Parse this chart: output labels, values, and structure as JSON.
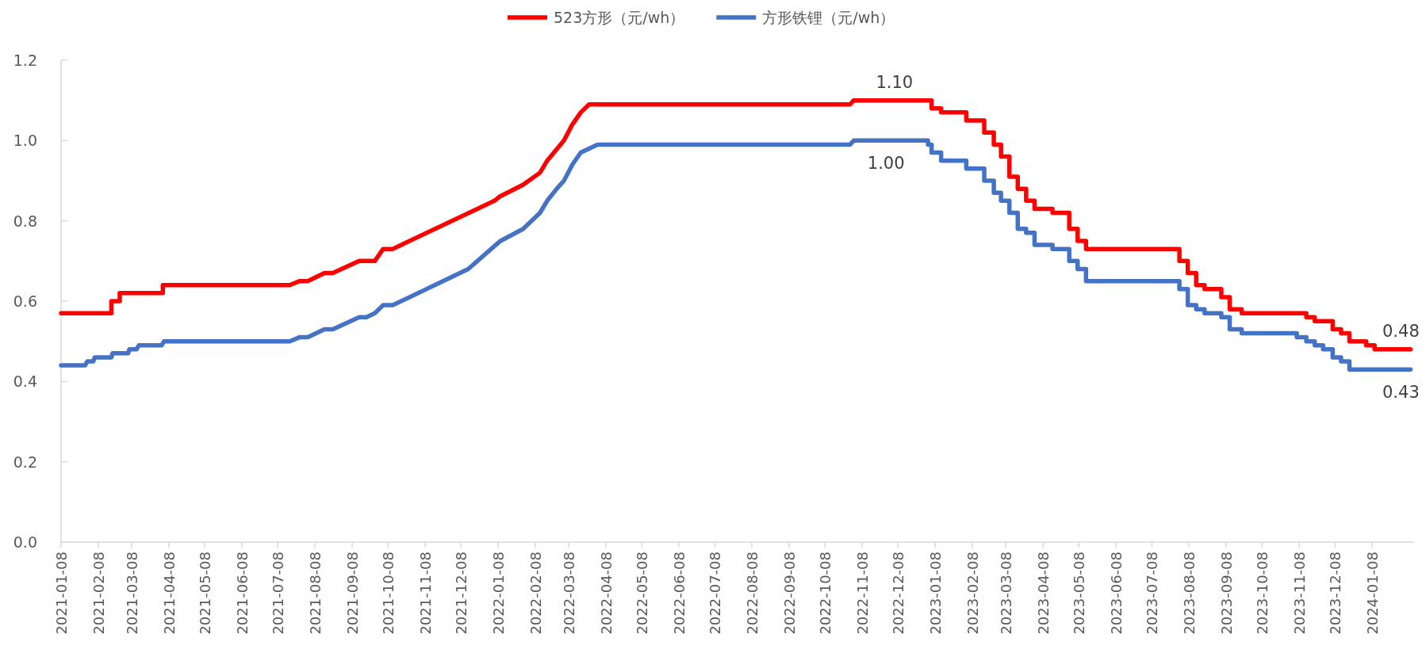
{
  "chart_data": {
    "type": "line",
    "legend": "top",
    "grid": false,
    "line_style": "solid",
    "marker": "none",
    "xlim": [
      "2021-01-08",
      "2024-02-12"
    ],
    "ylim": [
      0,
      1.2
    ],
    "yticks": [
      {
        "value": 0,
        "label": "0.0"
      },
      {
        "value": 0.2,
        "label": "0.2"
      },
      {
        "value": 0.4,
        "label": "0.4"
      },
      {
        "value": 0.6,
        "label": "0.6"
      },
      {
        "value": 0.8,
        "label": "0.8"
      },
      {
        "value": 1,
        "label": "1.0"
      },
      {
        "value": 1.2,
        "label": "1.2"
      }
    ],
    "xticks": [
      "2021-01-08",
      "2021-02-08",
      "2021-03-08",
      "2021-04-08",
      "2021-05-08",
      "2021-06-08",
      "2021-07-08",
      "2021-08-08",
      "2021-09-08",
      "2021-10-08",
      "2021-11-08",
      "2021-12-08",
      "2022-01-08",
      "2022-02-08",
      "2022-03-08",
      "2022-04-08",
      "2022-05-08",
      "2022-06-08",
      "2022-07-08",
      "2022-08-08",
      "2022-09-08",
      "2022-10-08",
      "2022-11-08",
      "2022-12-08",
      "2023-01-08",
      "2023-02-08",
      "2023-03-08",
      "2023-04-08",
      "2023-05-08",
      "2023-06-08",
      "2023-07-08",
      "2023-08-08",
      "2023-09-08",
      "2023-10-08",
      "2023-11-08",
      "2023-12-08",
      "2024-01-08"
    ],
    "series": [
      {
        "name": "523方形（元/wh）",
        "color": "#ff0000",
        "x": [
          "2021-01-08",
          "2021-02-19",
          "2021-02-19",
          "2021-02-26",
          "2021-02-26",
          "2021-04-03",
          "2021-04-03",
          "2021-07-18",
          "2021-07-26",
          "2021-08-02",
          "2021-08-16",
          "2021-08-23",
          "2021-09-14",
          "2021-09-20",
          "2021-09-27",
          "2021-10-04",
          "2021-10-12",
          "2022-01-05",
          "2022-01-09",
          "2022-01-29",
          "2022-02-12",
          "2022-02-18",
          "2022-03-04",
          "2022-03-11",
          "2022-03-18",
          "2022-03-25",
          "2022-04-01",
          "2022-10-29",
          "2022-11-01",
          "2023-01-05",
          "2023-01-05",
          "2023-01-13",
          "2023-01-13",
          "2023-02-03",
          "2023-02-03",
          "2023-02-18",
          "2023-02-18",
          "2023-02-26",
          "2023-02-26",
          "2023-03-04",
          "2023-03-04",
          "2023-03-11",
          "2023-03-11",
          "2023-03-18",
          "2023-03-18",
          "2023-03-25",
          "2023-03-25",
          "2023-04-01",
          "2023-04-01",
          "2023-04-16",
          "2023-04-16",
          "2023-04-30",
          "2023-04-30",
          "2023-05-07",
          "2023-05-07",
          "2023-05-14",
          "2023-05-14",
          "2023-07-31",
          "2023-07-31",
          "2023-08-07",
          "2023-08-07",
          "2023-08-14",
          "2023-08-14",
          "2023-08-21",
          "2023-08-21",
          "2023-09-04",
          "2023-09-04",
          "2023-09-11",
          "2023-09-11",
          "2023-09-21",
          "2023-09-21",
          "2023-11-14",
          "2023-11-14",
          "2023-11-21",
          "2023-11-21",
          "2023-12-06",
          "2023-12-06",
          "2023-12-13",
          "2023-12-13",
          "2023-12-20",
          "2023-12-20",
          "2024-01-03",
          "2024-01-03",
          "2024-01-10",
          "2024-01-10",
          "2024-02-09"
        ],
        "values": [
          0.57,
          0.57,
          0.6,
          0.6,
          0.62,
          0.62,
          0.64,
          0.64,
          0.65,
          0.65,
          0.67,
          0.67,
          0.7,
          0.7,
          0.7,
          0.73,
          0.73,
          0.85,
          0.86,
          0.89,
          0.92,
          0.95,
          1.0,
          1.04,
          1.07,
          1.09,
          1.09,
          1.09,
          1.1,
          1.1,
          1.08,
          1.08,
          1.07,
          1.07,
          1.05,
          1.05,
          1.02,
          1.02,
          0.99,
          0.99,
          0.96,
          0.96,
          0.91,
          0.91,
          0.88,
          0.88,
          0.85,
          0.85,
          0.83,
          0.83,
          0.82,
          0.82,
          0.78,
          0.78,
          0.75,
          0.75,
          0.73,
          0.73,
          0.7,
          0.7,
          0.67,
          0.67,
          0.64,
          0.64,
          0.63,
          0.63,
          0.61,
          0.61,
          0.58,
          0.58,
          0.57,
          0.57,
          0.56,
          0.56,
          0.55,
          0.55,
          0.53,
          0.53,
          0.52,
          0.52,
          0.5,
          0.5,
          0.49,
          0.49,
          0.48,
          0.48
        ]
      },
      {
        "name": "方形铁锂（元/wh）",
        "color": "#4472c4",
        "x": [
          "2021-01-08",
          "2021-01-28",
          "2021-01-30",
          "2021-02-04",
          "2021-02-05",
          "2021-02-19",
          "2021-02-20",
          "2021-03-05",
          "2021-03-06",
          "2021-03-12",
          "2021-03-14",
          "2021-04-02",
          "2021-04-04",
          "2021-07-18",
          "2021-07-26",
          "2021-08-02",
          "2021-08-16",
          "2021-08-23",
          "2021-09-14",
          "2021-09-20",
          "2021-09-27",
          "2021-10-04",
          "2021-10-12",
          "2021-12-14",
          "2022-01-06",
          "2022-01-10",
          "2022-01-29",
          "2022-02-12",
          "2022-02-18",
          "2022-02-26",
          "2022-03-04",
          "2022-03-11",
          "2022-03-18",
          "2022-03-25",
          "2022-04-01",
          "2022-10-29",
          "2022-11-01",
          "2023-01-02",
          "2023-01-02",
          "2023-01-05",
          "2023-01-05",
          "2023-01-13",
          "2023-01-13",
          "2023-02-03",
          "2023-02-03",
          "2023-02-18",
          "2023-02-18",
          "2023-02-26",
          "2023-02-26",
          "2023-03-04",
          "2023-03-04",
          "2023-03-11",
          "2023-03-11",
          "2023-03-18",
          "2023-03-18",
          "2023-03-25",
          "2023-03-25",
          "2023-04-01",
          "2023-04-01",
          "2023-04-16",
          "2023-04-16",
          "2023-04-30",
          "2023-04-30",
          "2023-05-07",
          "2023-05-07",
          "2023-05-14",
          "2023-05-14",
          "2023-07-31",
          "2023-07-31",
          "2023-08-07",
          "2023-08-07",
          "2023-08-14",
          "2023-08-14",
          "2023-08-21",
          "2023-08-21",
          "2023-09-04",
          "2023-09-04",
          "2023-09-11",
          "2023-09-11",
          "2023-09-21",
          "2023-09-21",
          "2023-11-06",
          "2023-11-06",
          "2023-11-14",
          "2023-11-14",
          "2023-11-21",
          "2023-11-21",
          "2023-11-28",
          "2023-11-28",
          "2023-12-06",
          "2023-12-06",
          "2023-12-13",
          "2023-12-13",
          "2023-12-20",
          "2023-12-20",
          "2024-02-09"
        ],
        "values": [
          0.44,
          0.44,
          0.45,
          0.45,
          0.46,
          0.46,
          0.47,
          0.47,
          0.48,
          0.48,
          0.49,
          0.49,
          0.5,
          0.5,
          0.51,
          0.51,
          0.53,
          0.53,
          0.56,
          0.56,
          0.57,
          0.59,
          0.59,
          0.68,
          0.74,
          0.75,
          0.78,
          0.82,
          0.85,
          0.88,
          0.9,
          0.94,
          0.97,
          0.98,
          0.99,
          0.99,
          1.0,
          1.0,
          0.99,
          0.99,
          0.97,
          0.97,
          0.95,
          0.95,
          0.93,
          0.93,
          0.9,
          0.9,
          0.87,
          0.87,
          0.85,
          0.85,
          0.82,
          0.82,
          0.78,
          0.78,
          0.77,
          0.77,
          0.74,
          0.74,
          0.73,
          0.73,
          0.7,
          0.7,
          0.68,
          0.68,
          0.65,
          0.65,
          0.63,
          0.63,
          0.59,
          0.59,
          0.58,
          0.58,
          0.57,
          0.57,
          0.56,
          0.56,
          0.53,
          0.53,
          0.52,
          0.52,
          0.51,
          0.51,
          0.5,
          0.5,
          0.49,
          0.49,
          0.48,
          0.48,
          0.46,
          0.46,
          0.45,
          0.45,
          0.43,
          0.43
        ]
      }
    ],
    "annotations": [
      {
        "text": "1.10",
        "x": "2022-12-05",
        "y": 1.1
      },
      {
        "text": "1.00",
        "x": "2022-11-28",
        "y": 1.0
      },
      {
        "text": "0.48",
        "x": "2024-02-01",
        "y": 0.48
      },
      {
        "text": "0.43",
        "x": "2024-02-01",
        "y": 0.43
      }
    ]
  }
}
